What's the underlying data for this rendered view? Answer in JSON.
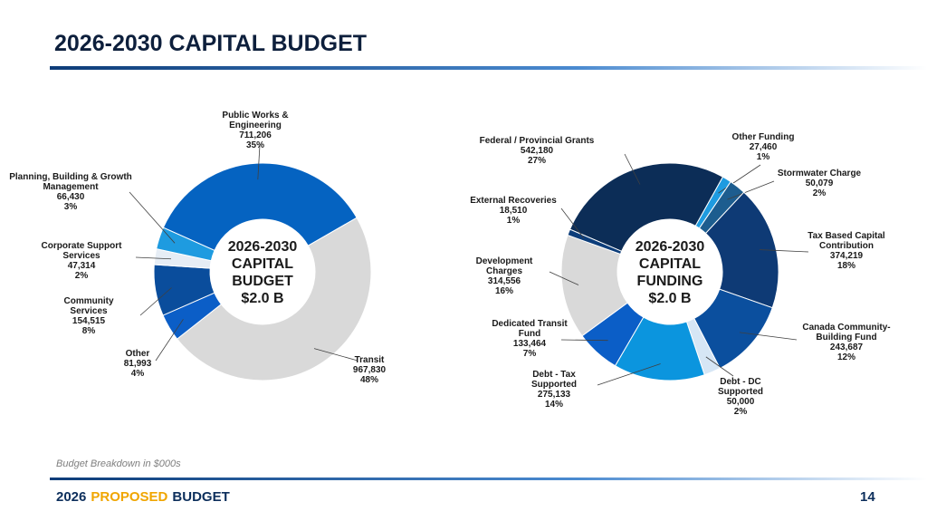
{
  "title": "2026-2030 CAPITAL BUDGET",
  "note": "Budget Breakdown in $000s",
  "footer": [
    "2026",
    "PROPOSED",
    "BUDGET"
  ],
  "page_number": "14",
  "chart_data": [
    {
      "type": "donut",
      "center_label": [
        "2026-2030",
        "CAPITAL",
        "BUDGET",
        "$2.0 B"
      ],
      "categories": [
        "Public Works & Engineering",
        "Transit",
        "Other",
        "Community Services",
        "Corporate Support Services",
        "Planning, Building & Growth Management"
      ],
      "values": [
        711206,
        967830,
        81993,
        154515,
        47314,
        66430
      ],
      "value_labels": [
        "711,206",
        "967,830",
        "81,993",
        "154,515",
        "47,314",
        "66,430"
      ],
      "percent_labels": [
        "35%",
        "48%",
        "4%",
        "8%",
        "2%",
        "3%"
      ],
      "colors": [
        "#0563c1",
        "#d9d9d9",
        "#0b5ec7",
        "#0a4d9c",
        "#e6edf5",
        "#1e9be0"
      ]
    },
    {
      "type": "donut",
      "center_label": [
        "2026-2030",
        "CAPITAL",
        "FUNDING",
        "$2.0 B"
      ],
      "categories": [
        "Federal / Provincial Grants",
        "Other Funding",
        "Stormwater Charge",
        "Tax Based Capital Contribution",
        "Canada Community-Building Fund",
        "Debt - DC Supported",
        "Debt - Tax Supported",
        "Dedicated Transit Fund",
        "Development Charges",
        "External Recoveries"
      ],
      "values": [
        542180,
        27460,
        50079,
        374219,
        243687,
        50000,
        275133,
        133464,
        314556,
        18510
      ],
      "value_labels": [
        "542,180",
        "27,460",
        "50,079",
        "374,219",
        "243,687",
        "50,000",
        "275,133",
        "133,464",
        "314,556",
        "18,510"
      ],
      "percent_labels": [
        "27%",
        "1%",
        "2%",
        "18%",
        "12%",
        "2%",
        "14%",
        "7%",
        "16%",
        "1%"
      ],
      "colors": [
        "#0c2d57",
        "#1e9be0",
        "#1d5d8f",
        "#0e3a75",
        "#0b4f9e",
        "#d6e6f5",
        "#0b95de",
        "#0b5ec7",
        "#d9d9d9",
        "#0c3d7a"
      ]
    }
  ]
}
